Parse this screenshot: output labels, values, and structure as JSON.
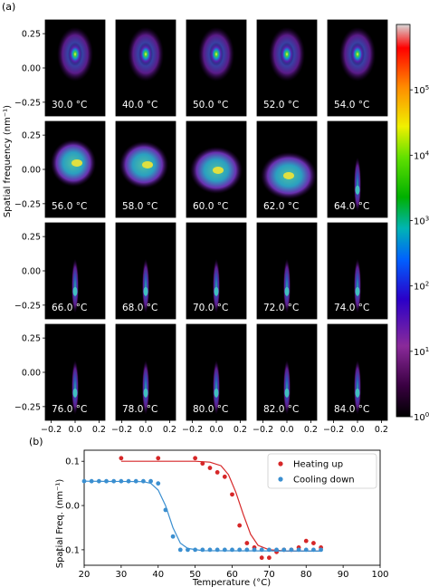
{
  "panel_a_label": "(a)",
  "panel_b_label": "(b)",
  "colors": {
    "heating": "#d62728",
    "cooling": "#3b8fd0",
    "panel_bg": "#000000"
  },
  "chart_data": [
    {
      "type": "heatmap",
      "ylabel": "Spatial frequency (nm⁻¹)",
      "xlabel": "",
      "grid": {
        "rows": 4,
        "cols": 5
      },
      "xlim": [
        -0.25,
        0.25
      ],
      "ylim": [
        -0.35,
        0.35
      ],
      "x_ticks": [
        "−0.2",
        "0.0",
        "0.2"
      ],
      "x_tick_values": [
        -0.2,
        0.0,
        0.2
      ],
      "y_ticks": [
        "0.25",
        "0.00",
        "−0.25"
      ],
      "y_tick_values": [
        0.25,
        0.0,
        -0.25
      ],
      "panels": [
        {
          "label": "30.0 °C"
        },
        {
          "label": "40.0 °C"
        },
        {
          "label": "50.0 °C"
        },
        {
          "label": "52.0 °C"
        },
        {
          "label": "54.0 °C"
        },
        {
          "label": "56.0 °C"
        },
        {
          "label": "58.0 °C"
        },
        {
          "label": "60.0 °C"
        },
        {
          "label": "62.0 °C"
        },
        {
          "label": "64.0 °C"
        },
        {
          "label": "66.0 °C"
        },
        {
          "label": "68.0 °C"
        },
        {
          "label": "70.0 °C"
        },
        {
          "label": "72.0 °C"
        },
        {
          "label": "74.0 °C"
        },
        {
          "label": "76.0 °C"
        },
        {
          "label": "78.0 °C"
        },
        {
          "label": "80.0 °C"
        },
        {
          "label": "82.0 °C"
        },
        {
          "label": "84.0 °C"
        }
      ],
      "colorbar": {
        "scale": "log",
        "range": [
          1,
          1000000
        ],
        "ticks": [
          {
            "base": "10",
            "exp": "0",
            "value": 1
          },
          {
            "base": "10",
            "exp": "1",
            "value": 10
          },
          {
            "base": "10",
            "exp": "2",
            "value": 100
          },
          {
            "base": "10",
            "exp": "3",
            "value": 1000
          },
          {
            "base": "10",
            "exp": "4",
            "value": 10000
          },
          {
            "base": "10",
            "exp": "5",
            "value": 100000
          }
        ]
      }
    },
    {
      "type": "scatter",
      "xlabel": "Temperature (°C)",
      "ylabel": "Spatial Freq. (nm⁻¹)",
      "xlim": [
        20,
        100
      ],
      "ylim": [
        -0.135,
        0.125
      ],
      "x_ticks": [
        20,
        30,
        40,
        50,
        60,
        70,
        80,
        90,
        100
      ],
      "y_ticks": [
        {
          "value": 0.1,
          "label": "0.1"
        },
        {
          "value": 0.0,
          "label": "0.0"
        },
        {
          "value": -0.1,
          "label": "−0.1"
        }
      ],
      "legend_position": "top-right",
      "series": [
        {
          "name": "Heating up",
          "points": [
            [
              30,
              0.107
            ],
            [
              40,
              0.107
            ],
            [
              50,
              0.107
            ],
            [
              52,
              0.095
            ],
            [
              54,
              0.085
            ],
            [
              56,
              0.075
            ],
            [
              58,
              0.065
            ],
            [
              60,
              0.025
            ],
            [
              62,
              -0.045
            ],
            [
              64,
              -0.085
            ],
            [
              66,
              -0.095
            ],
            [
              68,
              -0.118
            ],
            [
              70,
              -0.118
            ],
            [
              72,
              -0.105
            ],
            [
              74,
              -0.1
            ],
            [
              76,
              -0.1
            ],
            [
              78,
              -0.095
            ],
            [
              80,
              -0.08
            ],
            [
              82,
              -0.085
            ],
            [
              84,
              -0.095
            ]
          ],
          "fit": [
            [
              30,
              0.1
            ],
            [
              50,
              0.1
            ],
            [
              54,
              0.098
            ],
            [
              57,
              0.09
            ],
            [
              59,
              0.07
            ],
            [
              61,
              0.03
            ],
            [
              63,
              -0.02
            ],
            [
              65,
              -0.065
            ],
            [
              67,
              -0.09
            ],
            [
              70,
              -0.1
            ],
            [
              75,
              -0.103
            ],
            [
              84,
              -0.103
            ]
          ]
        },
        {
          "name": "Cooling down",
          "points": [
            [
              20,
              0.055
            ],
            [
              22,
              0.055
            ],
            [
              24,
              0.055
            ],
            [
              26,
              0.055
            ],
            [
              28,
              0.055
            ],
            [
              30,
              0.055
            ],
            [
              32,
              0.055
            ],
            [
              34,
              0.055
            ],
            [
              36,
              0.055
            ],
            [
              38,
              0.055
            ],
            [
              40,
              0.05
            ],
            [
              42,
              -0.01
            ],
            [
              44,
              -0.07
            ],
            [
              46,
              -0.1
            ],
            [
              48,
              -0.1
            ],
            [
              50,
              -0.1
            ],
            [
              52,
              -0.1
            ],
            [
              54,
              -0.1
            ],
            [
              56,
              -0.1
            ],
            [
              58,
              -0.1
            ],
            [
              60,
              -0.1
            ],
            [
              62,
              -0.1
            ],
            [
              64,
              -0.1
            ],
            [
              66,
              -0.1
            ],
            [
              68,
              -0.1
            ],
            [
              70,
              -0.1
            ],
            [
              72,
              -0.1
            ],
            [
              74,
              -0.1
            ],
            [
              76,
              -0.1
            ],
            [
              78,
              -0.1
            ],
            [
              80,
              -0.1
            ],
            [
              82,
              -0.1
            ],
            [
              84,
              -0.1
            ]
          ],
          "fit": [
            [
              20,
              0.055
            ],
            [
              36,
              0.054
            ],
            [
              38,
              0.05
            ],
            [
              40,
              0.035
            ],
            [
              42,
              0.0
            ],
            [
              44,
              -0.05
            ],
            [
              46,
              -0.085
            ],
            [
              48,
              -0.097
            ],
            [
              52,
              -0.102
            ],
            [
              84,
              -0.103
            ]
          ]
        }
      ]
    }
  ]
}
